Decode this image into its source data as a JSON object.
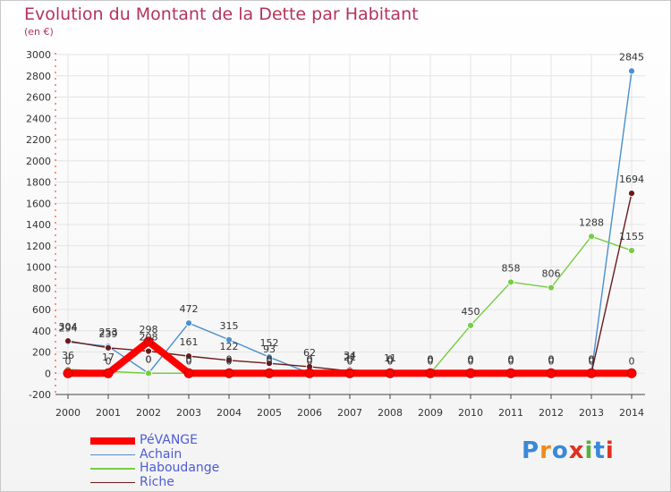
{
  "chart_data": {
    "type": "line",
    "title": "Evolution du Montant de la Dette par Habitant",
    "subtitle": "(en €)",
    "x": [
      "2000",
      "2001",
      "2002",
      "2003",
      "2004",
      "2005",
      "2006",
      "2007",
      "2008",
      "2009",
      "2010",
      "2011",
      "2012",
      "2013",
      "2014"
    ],
    "ylim": [
      -200,
      3000
    ],
    "yticks": [
      -200,
      0,
      200,
      400,
      600,
      800,
      1000,
      1200,
      1400,
      1600,
      1800,
      2000,
      2200,
      2400,
      2600,
      2800,
      3000
    ],
    "grid": true,
    "legend_position": "bottom-left",
    "series": [
      {
        "name": "PéVANGE",
        "color": "#ff0000",
        "values": [
          0,
          0,
          298,
          0,
          0,
          0,
          0,
          0,
          0,
          0,
          0,
          0,
          0,
          0,
          0
        ],
        "labels": [
          "0",
          "0",
          "298",
          "0",
          "0",
          "0",
          "0",
          "0",
          "0",
          "0",
          "0",
          "0",
          "0",
          "0",
          "0"
        ]
      },
      {
        "name": "Achain",
        "color": "#4a90d0",
        "values": [
          294,
          253,
          0,
          472,
          315,
          152,
          0,
          34,
          0,
          0,
          0,
          0,
          0,
          0,
          2845
        ],
        "labels": [
          "294",
          "253",
          "0",
          "472",
          "315",
          "152",
          "0",
          "34",
          "0",
          "0",
          "0",
          "0",
          "0",
          "0",
          "2845"
        ]
      },
      {
        "name": "Haboudange",
        "color": "#77cc44",
        "values": [
          36,
          17,
          0,
          0,
          0,
          0,
          0,
          0,
          0,
          0,
          450,
          858,
          806,
          1288,
          1155
        ],
        "labels": [
          "36",
          "17",
          "0",
          "0",
          "0",
          "0",
          "0",
          "0",
          "0",
          "0",
          "450",
          "858",
          "806",
          "1288",
          "1155"
        ]
      },
      {
        "name": "Riche",
        "color": "#6b1a1a",
        "values": [
          304,
          239,
          208,
          161,
          122,
          93,
          62,
          21,
          11,
          0,
          0,
          0,
          0,
          0,
          1694
        ],
        "labels": [
          "304",
          "239",
          "208",
          "161",
          "122",
          "93",
          "62",
          "21",
          "11",
          "0",
          "0",
          "0",
          "0",
          "0",
          "1694"
        ]
      }
    ]
  },
  "brand": {
    "logo_letters": [
      "P",
      "r",
      "o",
      "x",
      "i",
      "t",
      "i"
    ],
    "logo_colors": [
      "#3a88d8",
      "#f08a1a",
      "#3a88d8",
      "#e0301e",
      "#58b040",
      "#3a88d8",
      "#e0301e"
    ]
  }
}
